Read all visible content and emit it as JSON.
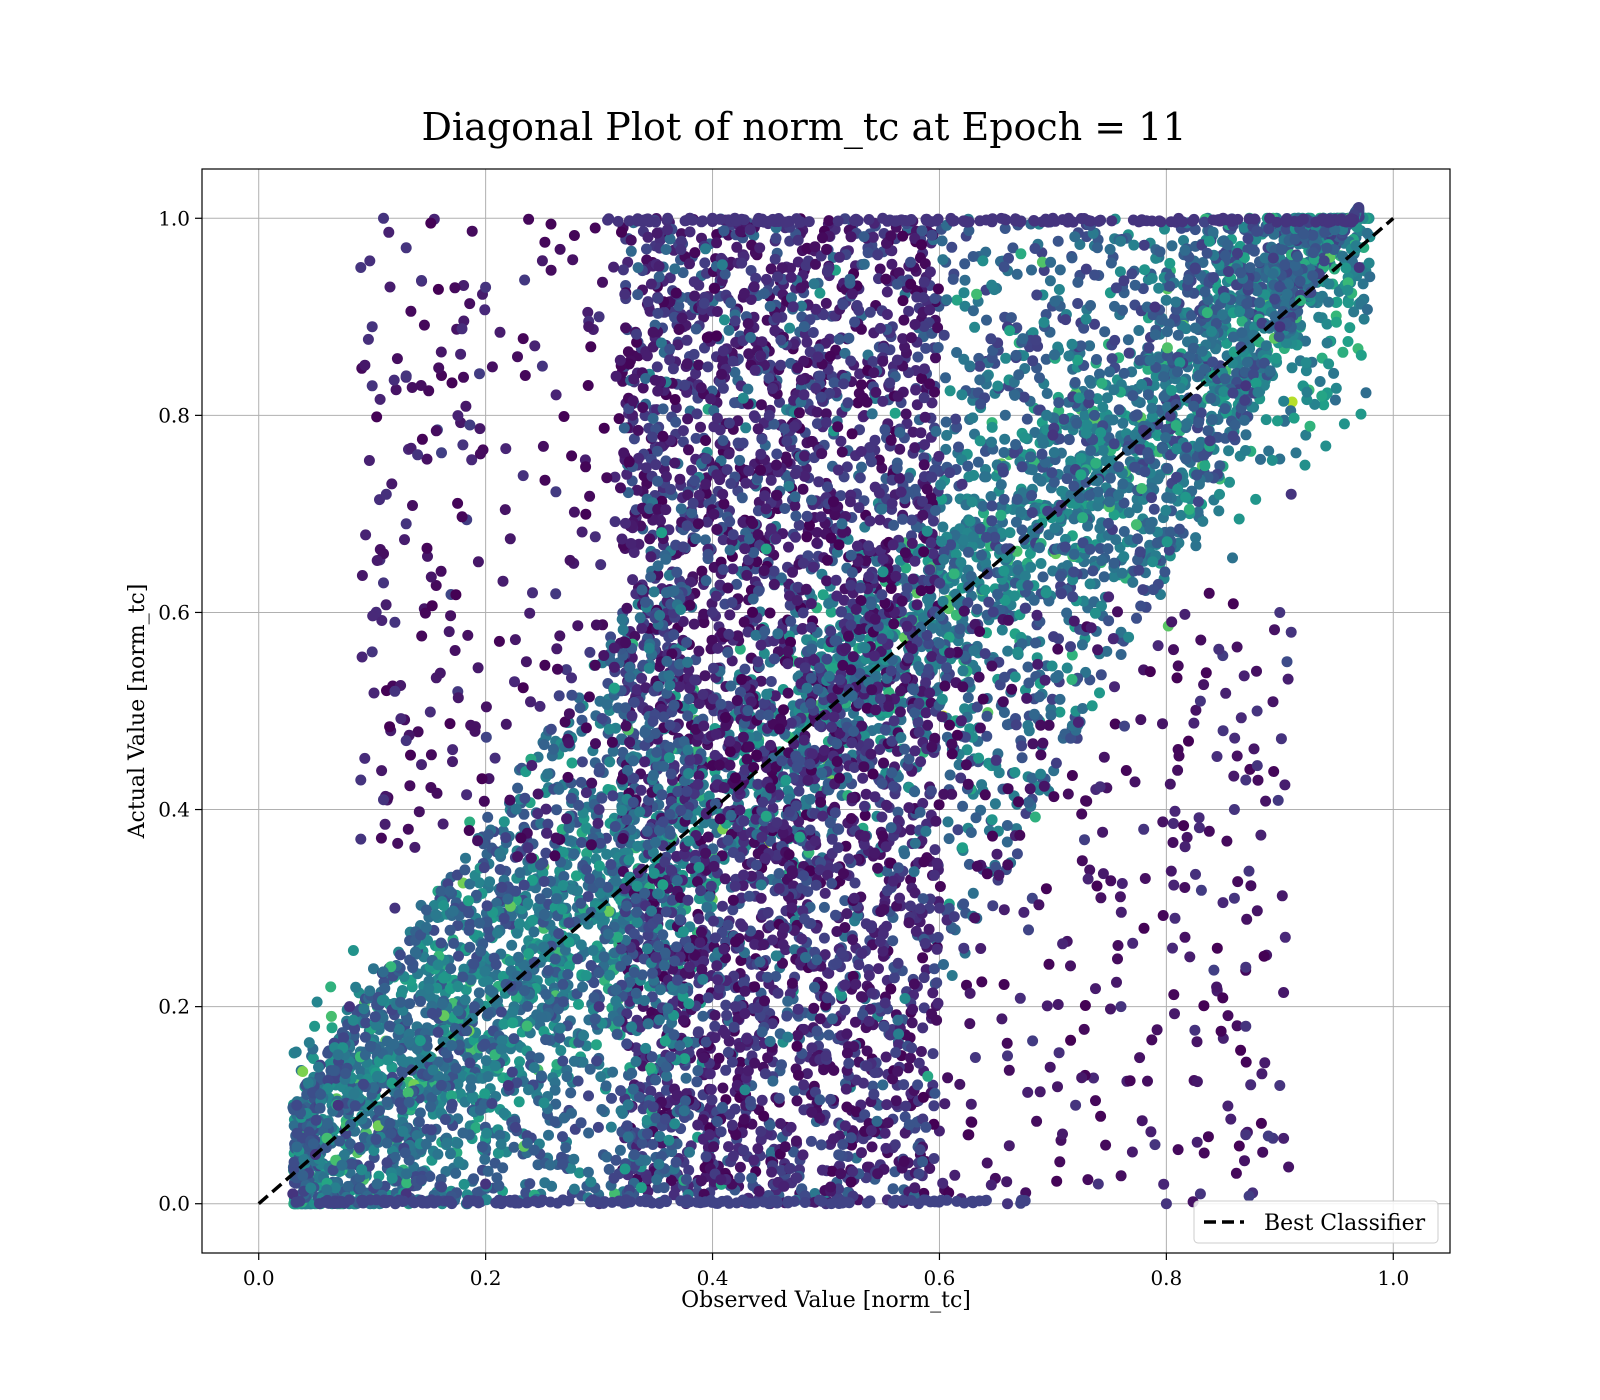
{
  "chart_data": {
    "type": "scatter",
    "title": "Diagonal Plot of norm_tc at Epoch = 11",
    "xlabel": "Observed Value [norm_tc]",
    "ylabel": "Actual Value [norm_tc]",
    "xlim": [
      -0.05,
      1.05
    ],
    "ylim": [
      -0.05,
      1.05
    ],
    "xticks": [
      "0.0",
      "0.2",
      "0.4",
      "0.6",
      "0.8",
      "1.0"
    ],
    "yticks": [
      "0.0",
      "0.2",
      "0.4",
      "0.6",
      "0.8",
      "1.0"
    ],
    "grid": true,
    "legend_position": "bottom-right",
    "colormap": "viridis",
    "marker_color_min": "#440154",
    "marker_color_max": "#d2e21b",
    "series": [
      {
        "name": "Best Classifier",
        "kind": "line",
        "style": "dashed",
        "color": "#000000",
        "x": [
          0.0,
          1.0
        ],
        "y": [
          0.0,
          1.0
        ]
      }
    ],
    "scatter_points_approx": [
      [
        0.11,
        1.0
      ],
      [
        0.13,
        0.97
      ],
      [
        0.09,
        0.95
      ],
      [
        0.1,
        0.89
      ],
      [
        0.1,
        0.83
      ],
      [
        0.13,
        0.84
      ],
      [
        0.18,
        0.77
      ],
      [
        0.14,
        0.76
      ],
      [
        0.13,
        0.69
      ],
      [
        0.11,
        0.63
      ],
      [
        0.12,
        0.59
      ],
      [
        0.1,
        0.56
      ],
      [
        0.12,
        0.52
      ],
      [
        0.09,
        0.43
      ],
      [
        0.11,
        0.41
      ],
      [
        0.13,
        0.47
      ],
      [
        0.09,
        0.37
      ],
      [
        0.12,
        0.3
      ],
      [
        0.08,
        0.2
      ],
      [
        0.07,
        0.1
      ],
      [
        0.05,
        0.05
      ],
      [
        0.03,
        0.01
      ],
      [
        0.13,
        0.01
      ],
      [
        0.22,
        0.12
      ],
      [
        0.3,
        0.2
      ],
      [
        0.35,
        0.25
      ],
      [
        0.3,
        0.4
      ],
      [
        0.44,
        0.55
      ],
      [
        0.56,
        0.49
      ],
      [
        0.62,
        0.73
      ],
      [
        0.7,
        0.78
      ],
      [
        0.79,
        0.91
      ],
      [
        0.87,
        0.83
      ],
      [
        0.9,
        0.89
      ],
      [
        0.97,
        0.95
      ],
      [
        0.91,
        0.72
      ],
      [
        0.9,
        0.6
      ],
      [
        0.91,
        0.58
      ],
      [
        0.88,
        0.5
      ],
      [
        0.87,
        0.43
      ],
      [
        0.86,
        0.4
      ],
      [
        0.87,
        0.24
      ],
      [
        0.87,
        0.18
      ],
      [
        0.9,
        0.12
      ],
      [
        0.87,
        0.07
      ],
      [
        0.83,
        0.01
      ],
      [
        0.8,
        0.0
      ],
      [
        0.86,
        0.31
      ],
      [
        0.83,
        0.51
      ],
      [
        0.85,
        0.48
      ],
      [
        0.78,
        0.38
      ],
      [
        0.76,
        0.2
      ],
      [
        0.74,
        0.02
      ],
      [
        0.66,
        0.0
      ],
      [
        0.5,
        0.0
      ],
      [
        0.3,
        0.0
      ],
      [
        0.2,
        0.02
      ],
      [
        0.55,
        1.0
      ],
      [
        0.4,
        1.0
      ],
      [
        0.7,
        1.0
      ],
      [
        0.85,
        1.0
      ],
      [
        0.3,
        0.9
      ],
      [
        0.25,
        0.85
      ],
      [
        0.2,
        0.93
      ],
      [
        0.35,
        0.75
      ],
      [
        0.48,
        0.65
      ],
      [
        0.52,
        0.35
      ],
      [
        0.42,
        0.2
      ],
      [
        0.6,
        0.3
      ],
      [
        0.66,
        0.15
      ],
      [
        0.72,
        0.1
      ],
      [
        0.79,
        0.06
      ],
      [
        0.4,
        0.6
      ],
      [
        0.45,
        0.8
      ],
      [
        0.58,
        0.92
      ],
      [
        0.65,
        0.45
      ],
      [
        0.5,
        0.15
      ],
      [
        0.38,
        0.45
      ]
    ]
  },
  "legend": {
    "label": "Best Classifier"
  }
}
